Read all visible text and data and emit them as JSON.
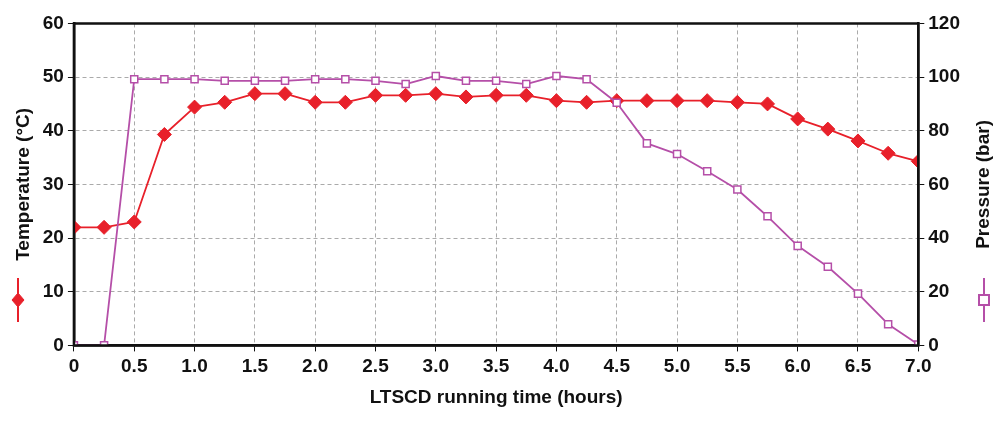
{
  "chart_data": {
    "type": "line",
    "xlabel": "LTSCD running time (hours)",
    "ylabel": "Temperature (°C)",
    "y2label": "Pressure (bar)",
    "x": [
      0,
      0.25,
      0.5,
      0.75,
      1,
      1.25,
      1.5,
      1.75,
      2,
      2.25,
      2.5,
      2.75,
      3,
      3.25,
      3.5,
      3.75,
      4,
      4.25,
      4.5,
      4.75,
      5,
      5.25,
      5.5,
      5.75,
      6,
      6.25,
      6.5,
      6.75,
      7
    ],
    "xlim": [
      0,
      7
    ],
    "xticks": [
      0,
      {
        "value": 0.5,
        "label": "0.5"
      },
      {
        "value": 1,
        "label": "1.0"
      },
      {
        "value": 1.5,
        "label": "1.5"
      },
      {
        "value": 2,
        "label": "2.0"
      },
      {
        "value": 2.5,
        "label": "2.5"
      },
      {
        "value": 3,
        "label": "3.0"
      },
      {
        "value": 3.5,
        "label": "3.5"
      },
      {
        "value": 4,
        "label": "4.0"
      },
      {
        "value": 4.5,
        "label": "4.5"
      },
      {
        "value": 5,
        "label": "5.0"
      },
      {
        "value": 5.5,
        "label": "5.5"
      },
      {
        "value": 6,
        "label": "6.0"
      },
      {
        "value": 6.5,
        "label": "6.5"
      },
      {
        "value": 7,
        "label": "7.0"
      }
    ],
    "ylim": [
      0,
      60
    ],
    "yticks": [
      0,
      10,
      20,
      30,
      40,
      50,
      60
    ],
    "y2lim": [
      0,
      120
    ],
    "y2ticks": [
      0,
      20,
      40,
      60,
      80,
      100,
      120
    ],
    "grid": true,
    "line_style": "solid",
    "series": [
      {
        "color": "#e8202a",
        "marker": "diamond",
        "values": [
          22,
          22,
          23,
          39.3,
          44.4,
          45.3,
          46.9,
          46.9,
          45.3,
          45.3,
          46.6,
          46.6,
          46.9,
          46.3,
          46.6,
          46.6,
          45.6,
          45.3,
          45.6,
          45.6,
          45.6,
          45.6,
          45.3,
          45,
          42.2,
          40.3,
          38.1,
          35.8,
          34.3
        ]
      },
      {
        "color": "#b54fa8",
        "marker": "square",
        "axis": "y2",
        "values": [
          0,
          0,
          99.2,
          99.2,
          99.2,
          98.6,
          98.6,
          98.6,
          99.2,
          99.2,
          98.6,
          97.4,
          100.4,
          98.6,
          98.6,
          97.4,
          100.4,
          99.2,
          90.4,
          75.3,
          71.3,
          64.9,
          58.1,
          48.1,
          37.1,
          29.3,
          19.3,
          7.9,
          0.3
        ]
      }
    ]
  }
}
